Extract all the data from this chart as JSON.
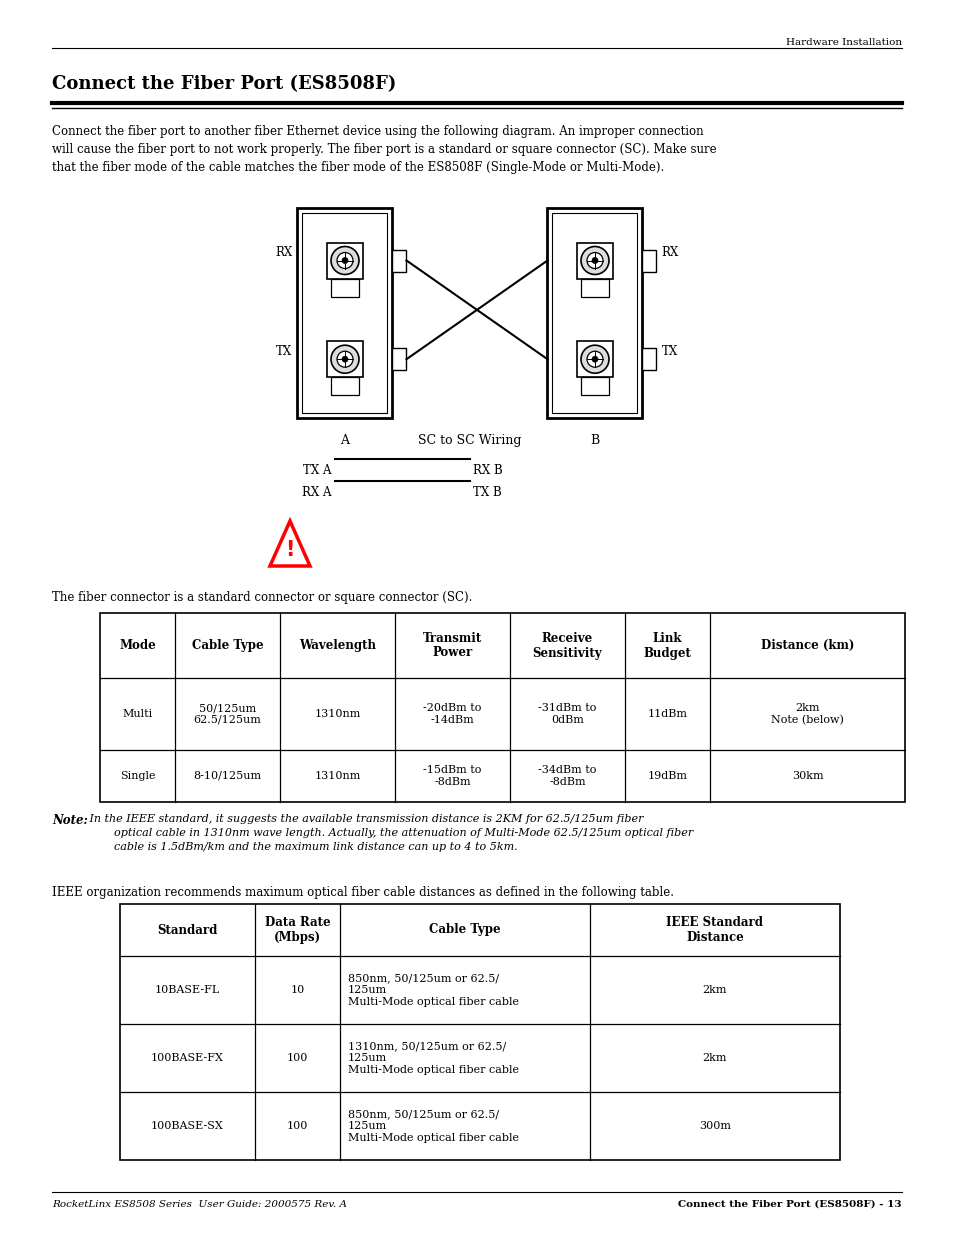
{
  "page_header_right": "Hardware Installation",
  "title": "Connect the Fiber Port (ES8508F)",
  "intro_text": "Connect the fiber port to another fiber Ethernet device using the following diagram. An improper connection\nwill cause the fiber port to not work properly. The fiber port is a standard or square connector (SC). Make sure\nthat the fiber mode of the cable matches the fiber mode of the ES8508F (Single-Mode or Multi-Mode).",
  "fiber_connector_text": "The fiber connector is a standard connector or square connector (SC).",
  "table1_headers": [
    "Mode",
    "Cable Type",
    "Wavelength",
    "Transmit\nPower",
    "Receive\nSensitivity",
    "Link\nBudget",
    "Distance (km)"
  ],
  "table1_rows": [
    [
      "Multi",
      "50/125um\n62.5/125um",
      "1310nm",
      "-20dBm to\n-14dBm",
      "-31dBm to\n0dBm",
      "11dBm",
      "2km\nNote (below)"
    ],
    [
      "Single",
      "8-10/125um",
      "1310nm",
      "-15dBm to\n-8dBm",
      "-34dBm to\n-8dBm",
      "19dBm",
      "30km"
    ]
  ],
  "note_bold": "Note:",
  "note_italic": " In the IEEE standard, it suggests the available transmission distance is 2KM for 62.5/125um fiber\n        optical cable in 1310nm wave length. Actually, the attenuation of Multi-Mode 62.5/125um optical fiber\n        cable is 1.5dBm/km and the maximum link distance can up to 4 to 5km.",
  "ieee_text": "IEEE organization recommends maximum optical fiber cable distances as defined in the following table.",
  "table2_headers": [
    "Standard",
    "Data Rate\n(Mbps)",
    "Cable Type",
    "IEEE Standard\nDistance"
  ],
  "table2_rows": [
    [
      "10BASE-FL",
      "10",
      "850nm, 50/125um or 62.5/\n125um\nMulti-Mode optical fiber cable",
      "2km"
    ],
    [
      "100BASE-FX",
      "100",
      "1310nm, 50/125um or 62.5/\n125um\nMulti-Mode optical fiber cable",
      "2km"
    ],
    [
      "100BASE-SX",
      "100",
      "850nm, 50/125um or 62.5/\n125um\nMulti-Mode optical fiber cable",
      "300m"
    ]
  ],
  "footer_left": "RocketLinx ES8508 Series  User Guide: 2000575 Rev. A",
  "footer_right": "Connect the Fiber Port (ES8508F) - 13",
  "bg_color": "#ffffff"
}
